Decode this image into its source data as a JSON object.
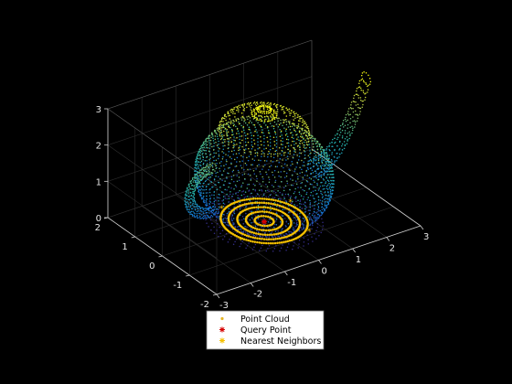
{
  "chart_data": {
    "type": "scatter",
    "title": "",
    "xlabel": "",
    "ylabel": "",
    "zlabel": "",
    "xlim": [
      -3,
      3
    ],
    "ylim": [
      -2,
      2
    ],
    "zlim": [
      0,
      3
    ],
    "x_ticks": [
      "-3",
      "-2",
      "-1",
      "0",
      "1",
      "2",
      "3"
    ],
    "y_ticks": [
      "-2",
      "-1",
      "0",
      "1",
      "2"
    ],
    "z_ticks": [
      "0",
      "1",
      "2",
      "3"
    ],
    "grid": true,
    "background": "#000000",
    "colormap": "parula",
    "legend_position": "bottom-center",
    "series": [
      {
        "name": "Point Cloud",
        "marker": ".",
        "color": "#e6b526"
      },
      {
        "name": "Query Point",
        "marker": "*",
        "color": "#d60000",
        "points": [
          [
            0,
            0,
            0
          ]
        ]
      },
      {
        "name": "Nearest Neighbors",
        "marker": "*",
        "color": "#f5c000"
      }
    ]
  }
}
